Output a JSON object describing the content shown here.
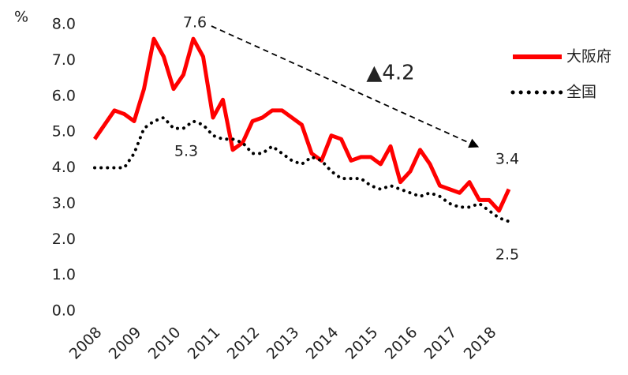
{
  "chart_data": {
    "type": "line",
    "y_axis_label": "%",
    "categories": [
      "2008",
      null,
      null,
      null,
      "2009",
      null,
      null,
      null,
      "2010",
      null,
      null,
      null,
      "2011",
      null,
      null,
      null,
      "2012",
      null,
      null,
      null,
      "2013",
      null,
      null,
      null,
      "2014",
      null,
      null,
      null,
      "2015",
      null,
      null,
      null,
      "2016",
      null,
      null,
      null,
      "2017",
      null,
      null,
      null,
      "2018",
      null,
      null
    ],
    "series": [
      {
        "name": "大阪府",
        "color": "#ff0000",
        "style": "solid",
        "values": [
          4.8,
          5.2,
          5.6,
          5.5,
          5.3,
          6.2,
          7.6,
          7.1,
          6.2,
          6.6,
          7.6,
          7.1,
          5.4,
          5.9,
          4.5,
          4.7,
          5.3,
          5.4,
          5.6,
          5.6,
          5.4,
          5.2,
          4.4,
          4.2,
          4.9,
          4.8,
          4.2,
          4.3,
          4.3,
          4.1,
          4.6,
          3.6,
          3.9,
          4.5,
          4.1,
          3.5,
          3.4,
          3.3,
          3.6,
          3.1,
          3.1,
          2.8,
          3.4
        ]
      },
      {
        "name": "全国",
        "color": "#000000",
        "style": "dotted",
        "values": [
          4.0,
          4.0,
          4.0,
          4.0,
          4.4,
          5.1,
          5.3,
          5.4,
          5.1,
          5.1,
          5.3,
          5.2,
          4.9,
          4.8,
          4.8,
          4.7,
          4.4,
          4.4,
          4.6,
          4.4,
          4.2,
          4.1,
          4.3,
          4.2,
          3.9,
          3.7,
          3.7,
          3.7,
          3.5,
          3.4,
          3.5,
          3.4,
          3.3,
          3.2,
          3.3,
          3.2,
          3.0,
          2.9,
          2.9,
          3.0,
          2.8,
          2.6,
          2.5
        ]
      }
    ],
    "ylim": [
      0,
      8
    ],
    "yticks": [
      {
        "value": 0,
        "label": "0.0"
      },
      {
        "value": 1,
        "label": "1.0"
      },
      {
        "value": 2,
        "label": "2.0"
      },
      {
        "value": 3,
        "label": "3.0"
      },
      {
        "value": 4,
        "label": "4.0"
      },
      {
        "value": 5,
        "label": "5.0"
      },
      {
        "value": 6,
        "label": "6.0"
      },
      {
        "value": 7,
        "label": "7.0"
      },
      {
        "value": 8,
        "label": "8.0"
      }
    ],
    "annotations": [
      "7.6",
      "5.3",
      "3.4",
      "2.5",
      "▲4.2"
    ],
    "legend": "right"
  }
}
